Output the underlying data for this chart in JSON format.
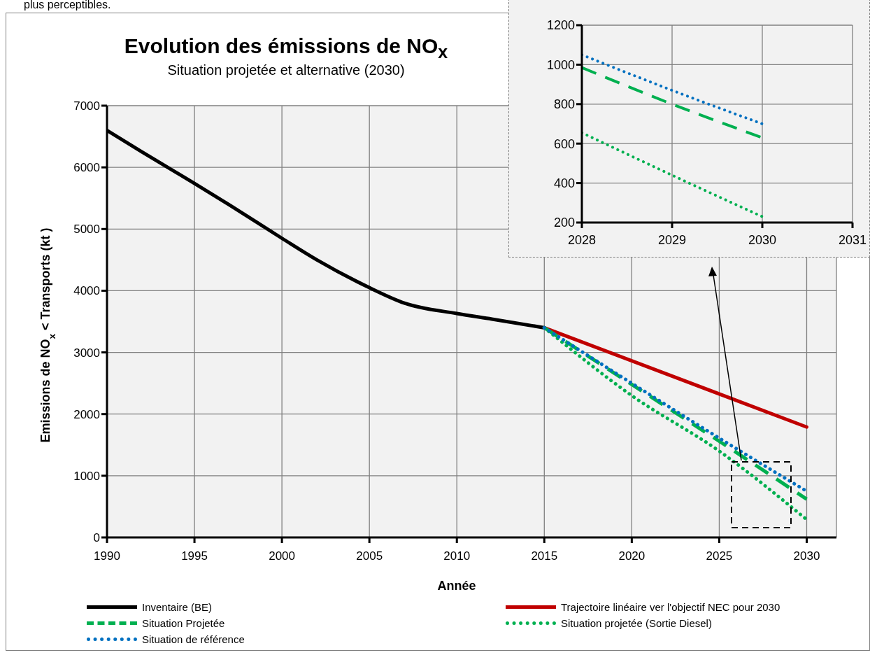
{
  "chart_data": [
    {
      "type": "line",
      "title": "Evolution des émissions de NO$_{x}$",
      "subtitle": "Situation projetée et alternative (2030)",
      "xlabel": "Année",
      "ylabel": "Emissions de NO$_{x}$ < Transports (kt )",
      "annotations": [
        "plus perceptibles."
      ],
      "xlim": [
        1990,
        2031.7
      ],
      "xticks": [
        1990,
        1995,
        2000,
        2005,
        2010,
        2015,
        2020,
        2025,
        2030
      ],
      "ylim": [
        0,
        7000
      ],
      "yticks": [
        0,
        1000,
        2000,
        3000,
        4000,
        5000,
        6000,
        7000
      ],
      "grid": true,
      "legend": "bottom",
      "series": [
        {
          "name": "Inventaire (BE)",
          "color": "#000000",
          "line_style": "solid",
          "x": [
            1990,
            1992,
            1995,
            1997,
            2000,
            2002,
            2005,
            2007,
            2010,
            2012,
            2015
          ],
          "values": [
            6600,
            6250,
            5740,
            5390,
            4850,
            4500,
            4050,
            3800,
            3630,
            3540,
            3400
          ]
        },
        {
          "name": "Trajectoire linéaire ver l'objectif NEC pour 2030",
          "color": "#c00000",
          "line_style": "solid",
          "x": [
            2015,
            2030
          ],
          "values": [
            3400,
            1790
          ]
        },
        {
          "name": "Situation Projetée",
          "color": "#00b050",
          "line_style": "dashed",
          "x": [
            2015,
            2020,
            2025,
            2030
          ],
          "values": [
            3400,
            2480,
            1560,
            620
          ]
        },
        {
          "name": "Situation projetée (Sortie Diesel)",
          "color": "#00b050",
          "line_style": "dotted",
          "x": [
            2015,
            2020,
            2025,
            2030
          ],
          "values": [
            3400,
            2300,
            1400,
            290
          ]
        },
        {
          "name": "Situation de référence",
          "color": "#0070c0",
          "line_style": "dotted",
          "x": [
            2015,
            2020,
            2025,
            2030
          ],
          "values": [
            3400,
            2500,
            1610,
            750
          ]
        }
      ]
    },
    {
      "type": "line",
      "xlim": [
        2028,
        2031
      ],
      "xticks": [
        2028,
        2029,
        2030,
        2031
      ],
      "ylim": [
        200,
        1200
      ],
      "yticks": [
        200,
        400,
        600,
        800,
        1000,
        1200
      ],
      "grid": true,
      "series": [
        {
          "color": "#0070c0",
          "line_style": "dotted",
          "x": [
            2028,
            2029,
            2030
          ],
          "values": [
            1050,
            870,
            700
          ]
        },
        {
          "color": "#00b050",
          "line_style": "dashed",
          "x": [
            2028,
            2029,
            2030
          ],
          "values": [
            985,
            800,
            630
          ]
        },
        {
          "color": "#00b050",
          "line_style": "dotted",
          "x": [
            2028,
            2029,
            2030
          ],
          "values": [
            655,
            440,
            230
          ]
        }
      ]
    }
  ]
}
